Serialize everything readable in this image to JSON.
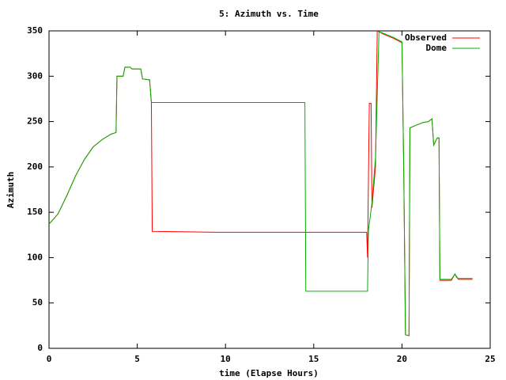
{
  "chart_data": {
    "type": "line",
    "title": "5: Azimuth vs. Time",
    "x_label": "time (Elapse Hours)",
    "y_label": "Azimuth",
    "xlim": [
      0,
      25
    ],
    "xticks": [
      0,
      5,
      10,
      15,
      20,
      25
    ],
    "ylim": [
      0,
      350
    ],
    "yticks": [
      0,
      50,
      100,
      150,
      200,
      250,
      300,
      350
    ],
    "legend": "top-right",
    "series": [
      {
        "name": "Observed",
        "color": "#ff0000",
        "x": [
          0,
          0.5,
          1,
          1.5,
          2,
          2.5,
          3,
          3.5,
          3.8,
          3.85,
          4.2,
          4.3,
          4.6,
          4.7,
          5.2,
          5.3,
          5.7,
          5.8,
          5.85,
          9.5,
          18.0,
          18.05,
          18.15,
          18.25,
          18.3,
          18.5,
          18.6,
          19.0,
          19.5,
          20.0,
          20.1,
          20.2,
          20.4,
          20.45,
          20.8,
          21.2,
          21.5,
          21.7,
          21.8,
          22.0,
          22.1,
          22.15,
          22.8,
          23.0,
          23.2,
          24.0
        ],
        "values": [
          137,
          148,
          168,
          190,
          208,
          222,
          230,
          236,
          238,
          300,
          300,
          310,
          310,
          308,
          308,
          297,
          296,
          271,
          129,
          128,
          128,
          100,
          270,
          270,
          155,
          200,
          350,
          346,
          342,
          337,
          200,
          15,
          14,
          243,
          246,
          249,
          250,
          253,
          224,
          232,
          232,
          75,
          75,
          82,
          76,
          76
        ]
      },
      {
        "name": "Dome",
        "color": "#00b000",
        "x": [
          0,
          0.5,
          1,
          1.5,
          2,
          2.5,
          3,
          3.5,
          3.8,
          3.85,
          4.2,
          4.3,
          4.6,
          4.7,
          5.2,
          5.3,
          5.7,
          5.8,
          14.5,
          14.55,
          18.05,
          18.1,
          18.3,
          18.5,
          18.7,
          19.0,
          19.5,
          20.0,
          20.1,
          20.2,
          20.4,
          20.45,
          20.8,
          21.2,
          21.5,
          21.7,
          21.8,
          22.0,
          22.1,
          22.15,
          22.8,
          23.0,
          23.1,
          23.2,
          24.0
        ],
        "values": [
          137,
          148,
          168,
          190,
          208,
          222,
          230,
          236,
          238,
          300,
          300,
          310,
          310,
          308,
          308,
          297,
          296,
          271,
          271,
          63,
          63,
          130,
          160,
          210,
          349,
          347,
          343,
          338,
          200,
          15,
          14,
          243,
          246,
          249,
          250,
          253,
          224,
          232,
          232,
          76,
          76,
          82,
          78,
          77,
          77
        ]
      }
    ]
  }
}
